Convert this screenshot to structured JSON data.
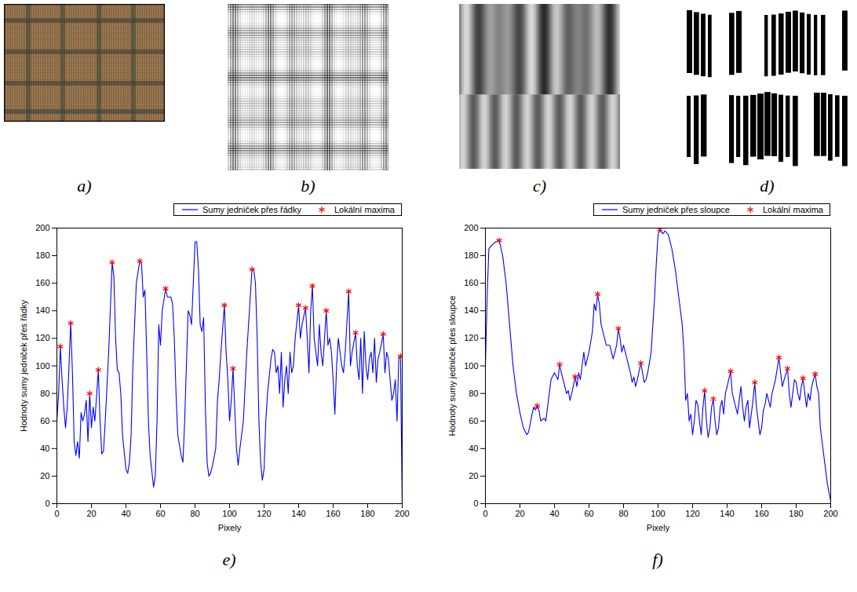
{
  "images": [
    {
      "label": "a)"
    },
    {
      "label": "b)"
    },
    {
      "label": "c)"
    },
    {
      "label": "d)"
    }
  ],
  "chart_data": [
    {
      "label": "e)",
      "type": "line",
      "xlabel": "Pixely",
      "ylabel": "Hodnoty sumy jedniček přes řádky",
      "xlim": [
        0,
        200
      ],
      "ylim": [
        0,
        200
      ],
      "xticks": [
        0,
        20,
        40,
        60,
        80,
        100,
        120,
        140,
        160,
        180,
        200
      ],
      "yticks": [
        0,
        20,
        40,
        60,
        80,
        100,
        120,
        140,
        160,
        180,
        200
      ],
      "grid": false,
      "legend": "top",
      "series": [
        {
          "name": "Sumy jedniček přes řádky",
          "type": "line",
          "color": "#0000ff",
          "line_style": "solid",
          "x": [
            0,
            1,
            2,
            3,
            4,
            5,
            6,
            7,
            8,
            9,
            10,
            11,
            12,
            13,
            14,
            15,
            16,
            17,
            18,
            19,
            20,
            21,
            22,
            24,
            25,
            26,
            27,
            28,
            30,
            32,
            33,
            34,
            35,
            36,
            37,
            38,
            40,
            41,
            42,
            43,
            44,
            46,
            48,
            49,
            50,
            51,
            52,
            53,
            54,
            56,
            57,
            58,
            59,
            60,
            61,
            63,
            64,
            66,
            67,
            68,
            69,
            70,
            72,
            73,
            74,
            75,
            76,
            77,
            78,
            79,
            80,
            81,
            82,
            83,
            84,
            85,
            86,
            87,
            88,
            89,
            90,
            92,
            93,
            94,
            95,
            97,
            98,
            99,
            100,
            101,
            102,
            103,
            104,
            105,
            106,
            108,
            110,
            112,
            113,
            114,
            115,
            116,
            117,
            118,
            119,
            120,
            121,
            122,
            124,
            125,
            126,
            127,
            128,
            129,
            130,
            131,
            132,
            133,
            134,
            135,
            136,
            137,
            138,
            140,
            141,
            142,
            144,
            145,
            146,
            147,
            148,
            149,
            150,
            151,
            152,
            153,
            154,
            156,
            157,
            158,
            159,
            160,
            161,
            162,
            163,
            164,
            165,
            166,
            167,
            169,
            170,
            171,
            173,
            174,
            175,
            176,
            177,
            178,
            179,
            180,
            181,
            182,
            183,
            184,
            185,
            186,
            187,
            189,
            190,
            191,
            192,
            193,
            194,
            195,
            196,
            197,
            198,
            199,
            200
          ],
          "values": [
            60,
            80,
            114,
            90,
            70,
            55,
            70,
            100,
            131,
            95,
            45,
            35,
            45,
            33,
            66,
            60,
            65,
            75,
            45,
            80,
            55,
            70,
            60,
            97,
            60,
            36,
            38,
            60,
            110,
            175,
            165,
            120,
            97,
            95,
            80,
            50,
            25,
            22,
            30,
            50,
            100,
            160,
            176,
            175,
            150,
            155,
            110,
            60,
            35,
            12,
            20,
            60,
            130,
            115,
            140,
            156,
            150,
            150,
            145,
            120,
            80,
            50,
            35,
            30,
            60,
            100,
            140,
            137,
            130,
            160,
            190,
            190,
            170,
            130,
            125,
            135,
            70,
            30,
            20,
            22,
            27,
            40,
            75,
            90,
            110,
            144,
            110,
            90,
            60,
            75,
            98,
            70,
            40,
            28,
            40,
            60,
            110,
            150,
            170,
            170,
            160,
            120,
            60,
            30,
            17,
            25,
            60,
            80,
            105,
            112,
            110,
            95,
            100,
            80,
            110,
            70,
            90,
            100,
            80,
            110,
            95,
            100,
            120,
            144,
            120,
            130,
            142,
            120,
            95,
            140,
            158,
            120,
            110,
            100,
            130,
            110,
            100,
            140,
            115,
            120,
            110,
            90,
            65,
            100,
            120,
            110,
            100,
            95,
            110,
            154,
            100,
            110,
            124,
            100,
            90,
            120,
            80,
            125,
            100,
            90,
            105,
            110,
            95,
            120,
            88,
            105,
            110,
            123,
            95,
            110,
            105,
            90,
            75,
            80,
            90,
            60,
            105,
            107,
            0
          ]
        },
        {
          "name": "Lokální maxima",
          "type": "scatter",
          "color": "#ff0000",
          "marker": "asterisk",
          "x": [
            2,
            8,
            19,
            24,
            32,
            48,
            63,
            97,
            102,
            113,
            140,
            144,
            148,
            156,
            169,
            173,
            189,
            199
          ],
          "values": [
            114,
            131,
            80,
            97,
            175,
            176,
            156,
            144,
            98,
            170,
            144,
            142,
            158,
            140,
            154,
            124,
            123,
            107
          ]
        }
      ]
    },
    {
      "label": "f)",
      "type": "line",
      "xlabel": "Pixely",
      "ylabel": "Hodnoty sumy jedniček přes sloupce",
      "xlim": [
        0,
        200
      ],
      "ylim": [
        0,
        200
      ],
      "xticks": [
        0,
        20,
        40,
        60,
        80,
        100,
        120,
        140,
        160,
        180,
        200
      ],
      "yticks": [
        0,
        20,
        40,
        60,
        80,
        100,
        120,
        140,
        160,
        180,
        200
      ],
      "grid": false,
      "legend": "top",
      "series": [
        {
          "name": "Sumy jedniček přes sloupce",
          "type": "line",
          "color": "#0000ff",
          "line_style": "solid",
          "x": [
            0,
            1,
            2,
            4,
            6,
            8,
            10,
            12,
            14,
            16,
            18,
            20,
            22,
            24,
            25,
            26,
            27,
            28,
            29,
            30,
            31,
            32,
            34,
            35,
            36,
            38,
            40,
            42,
            43,
            44,
            46,
            47,
            48,
            49,
            50,
            52,
            53,
            54,
            55,
            56,
            57,
            58,
            60,
            62,
            63,
            64,
            65,
            66,
            67,
            68,
            70,
            72,
            74,
            76,
            77,
            78,
            79,
            80,
            82,
            83,
            84,
            85,
            86,
            87,
            88,
            90,
            91,
            92,
            93,
            94,
            96,
            97,
            98,
            99,
            100,
            101,
            102,
            103,
            104,
            106,
            108,
            110,
            112,
            114,
            115,
            116,
            117,
            118,
            119,
            120,
            121,
            122,
            123,
            124,
            125,
            126,
            127,
            128,
            129,
            130,
            131,
            132,
            133,
            134,
            135,
            136,
            137,
            138,
            139,
            140,
            142,
            143,
            144,
            145,
            146,
            147,
            148,
            149,
            150,
            151,
            152,
            153,
            154,
            155,
            156,
            157,
            158,
            159,
            160,
            161,
            162,
            163,
            164,
            165,
            166,
            168,
            170,
            171,
            172,
            173,
            175,
            176,
            177,
            178,
            179,
            180,
            181,
            182,
            183,
            184,
            185,
            186,
            187,
            188,
            189,
            190,
            191,
            192,
            193,
            194,
            195,
            196,
            197,
            198,
            199,
            200
          ],
          "values": [
            100,
            150,
            185,
            188,
            190,
            191,
            180,
            160,
            130,
            100,
            80,
            66,
            55,
            50,
            52,
            58,
            65,
            70,
            68,
            71,
            68,
            60,
            62,
            60,
            70,
            90,
            95,
            90,
            101,
            95,
            85,
            80,
            82,
            75,
            80,
            92,
            85,
            95,
            90,
            100,
            110,
            100,
            110,
            125,
            145,
            140,
            152,
            145,
            130,
            125,
            115,
            115,
            105,
            115,
            127,
            120,
            110,
            115,
            105,
            100,
            95,
            88,
            92,
            85,
            90,
            102,
            95,
            88,
            90,
            95,
            110,
            130,
            150,
            175,
            195,
            199,
            197,
            196,
            198,
            195,
            185,
            170,
            150,
            130,
            110,
            75,
            80,
            60,
            65,
            50,
            60,
            75,
            72,
            60,
            50,
            70,
            82,
            60,
            48,
            55,
            70,
            76,
            60,
            50,
            55,
            70,
            75,
            65,
            80,
            85,
            96,
            80,
            75,
            70,
            65,
            75,
            85,
            70,
            60,
            70,
            75,
            55,
            65,
            75,
            88,
            70,
            60,
            50,
            55,
            68,
            72,
            80,
            75,
            70,
            80,
            90,
            106,
            95,
            85,
            90,
            98,
            80,
            70,
            80,
            90,
            88,
            80,
            75,
            85,
            91,
            80,
            70,
            80,
            75,
            85,
            90,
            94,
            85,
            80,
            55,
            45,
            35,
            25,
            15,
            8,
            2
          ]
        },
        {
          "name": "Lokální maxima",
          "type": "scatter",
          "color": "#ff0000",
          "marker": "asterisk",
          "x": [
            8,
            30,
            43,
            52,
            65,
            77,
            90,
            101,
            127,
            132,
            142,
            156,
            170,
            175,
            184,
            191
          ],
          "values": [
            191,
            71,
            101,
            92,
            152,
            127,
            102,
            199,
            82,
            76,
            96,
            88,
            106,
            98,
            91,
            94
          ]
        }
      ]
    }
  ]
}
